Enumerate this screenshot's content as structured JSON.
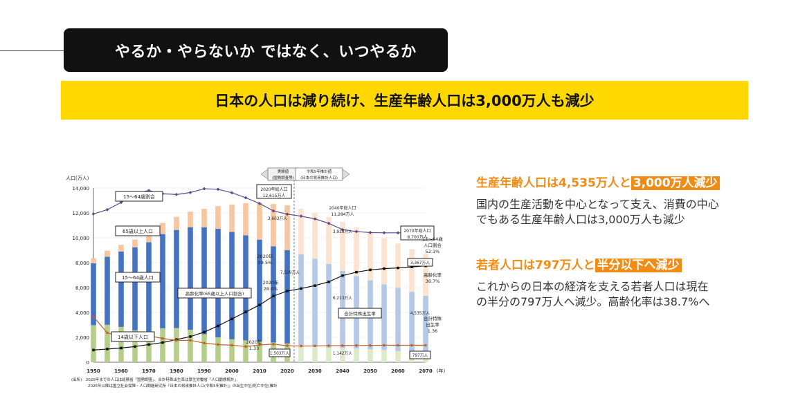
{
  "slide": {
    "title": "やるか・やらないか ではなく、いつやるか",
    "subtitle": "日本の人口は減り続け、生産年齢人口は3,000万人も減少"
  },
  "points": [
    {
      "headline_pre": "生産年齢人口は4,535万人と",
      "headline_mark": "3,000万人減少",
      "body": [
        "国内の生産活動を中心となって支え、消費の中心",
        "でもある生産年齢人口は3,000万人も減少"
      ]
    },
    {
      "headline_pre": "若者人口は797万人と",
      "headline_mark": "半分以下へ減少",
      "body": [
        "これからの日本の経済を支える若者人口は現在",
        "の半分の797万人へ減少。高齢化率は38.7%へ"
      ]
    }
  ],
  "colors": {
    "young": "#b5cf8a",
    "working": "#4472c4",
    "elderly": "#f6c69f",
    "proj_young": "#dde9c9",
    "proj_working": "#b4c8e8",
    "proj_elderly": "#fbe3d0",
    "ratio_line": "#5b4a8a",
    "aging_line": "#111111",
    "fertility_line": "#c0602a",
    "headline": "#f08c14",
    "band": "#ffd800"
  },
  "chart_data": {
    "type": "bar",
    "stacked": true,
    "ylabel": "人口(万人)",
    "ylim": [
      0,
      14000
    ],
    "y_ticks": [
      "0",
      "2,000",
      "4,000",
      "6,000",
      "8,000",
      "10,000",
      "12,000",
      "14,000"
    ],
    "x_ticks": [
      "1950",
      "1960",
      "1970",
      "1980",
      "1990",
      "2000",
      "2010",
      "2020",
      "2030",
      "2040",
      "2050",
      "2060",
      "2070"
    ],
    "x_unit": "(年)",
    "x": [
      1950,
      1955,
      1960,
      1965,
      1970,
      1975,
      1980,
      1985,
      1990,
      1995,
      2000,
      2005,
      2010,
      2015,
      2020,
      2025,
      2030,
      2035,
      2040,
      2045,
      2050,
      2055,
      2060,
      2065,
      2070
    ],
    "projection_start": 2025,
    "series": [
      {
        "name": "14歳以下人口",
        "values": [
          2980,
          3010,
          2840,
          2550,
          2480,
          2720,
          2750,
          2600,
          2250,
          2000,
          1850,
          1760,
          1680,
          1590,
          1503,
          1363,
          1240,
          1169,
          1142,
          1100,
          1040,
          980,
          910,
          850,
          797
        ]
      },
      {
        "name": "15〜64歳人口",
        "values": [
          4970,
          5470,
          6050,
          6690,
          7160,
          7580,
          7880,
          8250,
          8590,
          8720,
          8620,
          8440,
          8170,
          7730,
          7509,
          7310,
          7076,
          6722,
          6213,
          5832,
          5540,
          5275,
          5078,
          4809,
          4535
        ]
      },
      {
        "name": "65歳以上人口",
        "values": [
          410,
          480,
          540,
          620,
          740,
          890,
          1060,
          1250,
          1490,
          1830,
          2200,
          2580,
          2950,
          3390,
          3603,
          3653,
          3696,
          3773,
          3928,
          3897,
          3841,
          3702,
          3540,
          3420,
          3367
        ]
      }
    ],
    "lines": [
      {
        "name": "15〜64歳割合",
        "values": [
          59.6,
          61.3,
          64.2,
          67.9,
          69.0,
          67.7,
          67.4,
          68.2,
          69.7,
          69.5,
          68.1,
          66.1,
          63.8,
          60.8,
          59.5,
          58.7,
          57.6,
          55.8,
          53.3,
          52.5,
          52.1,
          52.0,
          52.0,
          51.8,
          52.1
        ]
      },
      {
        "name": "高齢化率(65歳以上人口割合)",
        "values": [
          4.9,
          5.3,
          5.7,
          6.3,
          7.1,
          7.9,
          9.1,
          10.3,
          12.1,
          14.6,
          17.4,
          20.2,
          23.0,
          26.6,
          28.6,
          29.6,
          30.8,
          32.3,
          34.8,
          36.2,
          37.1,
          37.6,
          37.9,
          38.3,
          38.7
        ]
      },
      {
        "name": "合計特殊出生率",
        "values": [
          3.65,
          2.37,
          2.0,
          2.14,
          2.13,
          1.91,
          1.75,
          1.76,
          1.54,
          1.42,
          1.36,
          1.26,
          1.39,
          1.45,
          1.33,
          1.3,
          1.31,
          1.33,
          1.34,
          1.35,
          1.35,
          1.36,
          1.36,
          1.36,
          1.36
        ]
      }
    ],
    "labels": {
      "legend_ratio": "15〜64歳割合",
      "legend_elderly": "65歳以上人口",
      "legend_working": "15〜64歳人口",
      "legend_young": "14歳以下人口",
      "legend_aging": "高齢化率(65歳以上人口割合)",
      "legend_fertility": "合計特殊出生率",
      "actual": [
        "実績値",
        "(国勢調査等)"
      ],
      "projection": [
        "令和5年推計値",
        "(日本の将来推計人口)"
      ],
      "peak_2020": [
        "2020年総人口",
        "12,615万人"
      ],
      "peak_2040": [
        "2040年総人口",
        "11,284万人"
      ],
      "peak_2070": [
        "2070年総人口",
        "8,700万人"
      ],
      "ratio_2020": [
        "2020年",
        "59.5%"
      ],
      "aging_2020": [
        "2020年",
        "28.6%"
      ],
      "fert_2020": [
        "2020年",
        "1.33"
      ],
      "right_ratio": [
        "15〜64歳",
        "人口割合",
        "52.1%"
      ],
      "right_aging": [
        "高齢化率",
        "38.7%"
      ],
      "right_fert": [
        "合計特殊",
        "出生率",
        "1.36"
      ],
      "v2020_eld": "3,603万人",
      "v2020_wrk": "7,509万人",
      "v2020_yng": "1,503万人",
      "v2040_eld": "3,928万人",
      "v2040_wrk": "6,213万人",
      "v2040_yng": "1,142万人",
      "v2070_eld": "3,367万人",
      "v2070_wrk": "4,535万人",
      "v2070_yng": "797万人",
      "source": [
        "(出所)　2020年までの人口は総務省「国勢調査」、合計特殊出生率は厚生労働省「人口動態統計」、",
        "2025年以降は国立社会保障・人口問題研究所「日本の将来推計人口(令和5年推計)」の出生中位(死亡中位)推計"
      ]
    }
  }
}
